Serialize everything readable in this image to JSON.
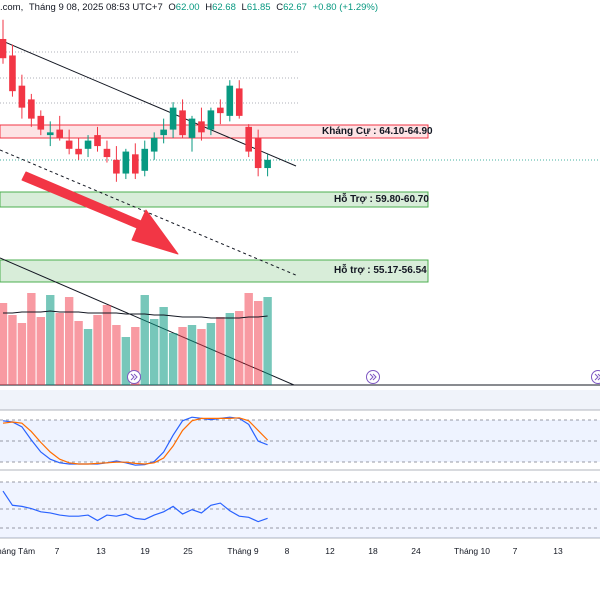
{
  "header": {
    "source": ".com, ",
    "datetime": "Tháng 9 08, 2025 08:53 UTC+7",
    "open_label": "O",
    "open": "62.00",
    "high_label": "H",
    "high": "62.68",
    "low_label": "L",
    "low": "61.85",
    "close_label": "C",
    "close": "62.67",
    "change": "+0.80 (+1.29%)"
  },
  "zones": [
    {
      "label": "Kháng Cự : 64.10-64.90",
      "color": "#f23645",
      "range": [
        64.1,
        64.9
      ]
    },
    {
      "label": "Hỗ Trợ : 59.80-60.70",
      "color": "#4caf50",
      "range": [
        59.8,
        60.7
      ]
    },
    {
      "label": "Hỗ trợ : 55.17-56.54",
      "color": "#4caf50",
      "range": [
        55.17,
        56.54
      ]
    }
  ],
  "x_ticks": [
    "háng Tám",
    "7",
    "13",
    "19",
    "25",
    "Tháng 9",
    "8",
    "12",
    "18",
    "24",
    "Tháng 10",
    "7",
    "13"
  ],
  "colors": {
    "up": "#089981",
    "down": "#f23645",
    "stoch_k": "#2962ff",
    "stoch_d": "#ff6d00",
    "rsi": "#2962ff"
  },
  "chart_data": [
    {
      "type": "candlestick",
      "title": "",
      "ylim": [
        54.5,
        67.5
      ],
      "candles": [
        {
          "o": 67.1,
          "h": 67.8,
          "l": 66.2,
          "c": 66.4
        },
        {
          "o": 66.5,
          "h": 66.9,
          "l": 65.0,
          "c": 65.2
        },
        {
          "o": 65.4,
          "h": 65.8,
          "l": 64.2,
          "c": 64.6
        },
        {
          "o": 64.9,
          "h": 65.1,
          "l": 63.9,
          "c": 64.2
        },
        {
          "o": 64.3,
          "h": 64.5,
          "l": 63.6,
          "c": 63.8
        },
        {
          "o": 63.6,
          "h": 64.1,
          "l": 63.2,
          "c": 63.7
        },
        {
          "o": 63.8,
          "h": 64.3,
          "l": 63.4,
          "c": 63.5
        },
        {
          "o": 63.4,
          "h": 63.8,
          "l": 62.9,
          "c": 63.1
        },
        {
          "o": 63.1,
          "h": 63.5,
          "l": 62.7,
          "c": 62.9
        },
        {
          "o": 63.1,
          "h": 63.6,
          "l": 62.8,
          "c": 63.4
        },
        {
          "o": 63.6,
          "h": 63.9,
          "l": 63.0,
          "c": 63.2
        },
        {
          "o": 63.1,
          "h": 63.4,
          "l": 62.6,
          "c": 62.8
        },
        {
          "o": 62.7,
          "h": 63.2,
          "l": 61.9,
          "c": 62.2
        },
        {
          "o": 62.2,
          "h": 63.1,
          "l": 62.0,
          "c": 63.0
        },
        {
          "o": 62.9,
          "h": 63.3,
          "l": 62.0,
          "c": 62.2
        },
        {
          "o": 62.3,
          "h": 63.4,
          "l": 62.1,
          "c": 63.1
        },
        {
          "o": 63.0,
          "h": 63.7,
          "l": 62.7,
          "c": 63.5
        },
        {
          "o": 63.6,
          "h": 64.2,
          "l": 63.3,
          "c": 63.8
        },
        {
          "o": 63.8,
          "h": 64.8,
          "l": 63.5,
          "c": 64.6
        },
        {
          "o": 64.5,
          "h": 64.9,
          "l": 63.5,
          "c": 63.6
        },
        {
          "o": 63.5,
          "h": 64.3,
          "l": 63.0,
          "c": 64.2
        },
        {
          "o": 64.1,
          "h": 64.6,
          "l": 63.4,
          "c": 63.7
        },
        {
          "o": 63.8,
          "h": 64.6,
          "l": 63.6,
          "c": 64.5
        },
        {
          "o": 64.6,
          "h": 64.9,
          "l": 64.0,
          "c": 64.4
        },
        {
          "o": 64.3,
          "h": 65.6,
          "l": 64.1,
          "c": 65.4
        },
        {
          "o": 65.3,
          "h": 65.6,
          "l": 64.2,
          "c": 64.3
        },
        {
          "o": 63.9,
          "h": 64.0,
          "l": 62.8,
          "c": 63.0
        },
        {
          "o": 63.5,
          "h": 63.8,
          "l": 62.1,
          "c": 62.4
        },
        {
          "o": 62.4,
          "h": 62.9,
          "l": 62.1,
          "c": 62.7
        }
      ],
      "volume": [
        0.82,
        0.7,
        0.62,
        0.92,
        0.68,
        0.9,
        0.72,
        0.88,
        0.64,
        0.56,
        0.7,
        0.8,
        0.6,
        0.48,
        0.58,
        0.9,
        0.66,
        0.78,
        0.52,
        0.58,
        0.6,
        0.56,
        0.62,
        0.68,
        0.72,
        0.74,
        0.92,
        0.84,
        0.88
      ],
      "volume_ma": [
        0.72,
        0.72,
        0.73,
        0.73,
        0.73,
        0.74,
        0.73,
        0.73,
        0.73,
        0.72,
        0.72,
        0.72,
        0.72,
        0.71,
        0.71,
        0.71,
        0.7,
        0.7,
        0.69,
        0.68,
        0.68,
        0.68,
        0.67,
        0.67,
        0.67,
        0.67,
        0.68,
        0.68,
        0.69
      ]
    },
    {
      "type": "line",
      "title": "",
      "ylim": [
        0,
        100
      ],
      "series": [
        {
          "values": [
            82,
            80,
            72,
            50,
            30,
            18,
            12,
            10,
            10,
            10,
            10,
            12,
            15,
            12,
            8,
            9,
            14,
            30,
            58,
            82,
            88,
            86,
            84,
            86,
            88,
            86,
            76,
            48,
            42
          ]
        },
        {
          "values": [
            78,
            80,
            78,
            64,
            46,
            30,
            18,
            12,
            10,
            10,
            11,
            12,
            13,
            13,
            11,
            10,
            12,
            20,
            40,
            66,
            82,
            86,
            86,
            86,
            86,
            87,
            82,
            66,
            50
          ]
        }
      ]
    },
    {
      "type": "line",
      "title": "",
      "ylim": [
        25,
        80
      ],
      "series": [
        {
          "values": [
            68,
            55,
            54,
            52,
            49,
            48,
            46,
            45,
            45,
            46,
            41,
            46,
            45,
            47,
            43,
            42,
            46,
            49,
            54,
            47,
            51,
            48,
            55,
            57,
            50,
            45,
            44,
            40,
            43
          ]
        }
      ]
    }
  ]
}
